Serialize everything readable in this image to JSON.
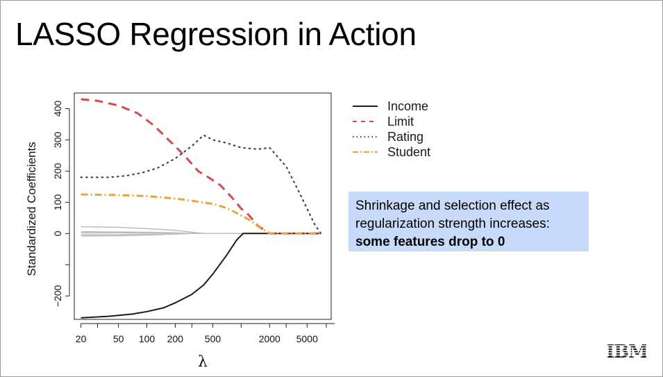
{
  "slide": {
    "title": "LASSO Regression in Action",
    "callout_line1": "Shrinkage and selection effect as",
    "callout_line2": "regularization strength increases:",
    "callout_bold": "some features drop to 0",
    "logo_text": "IBM"
  },
  "chart_data": {
    "type": "line",
    "xlabel": "λ",
    "ylabel": "Standardized Coefficients",
    "x_scale": "log",
    "xlim": [
      17,
      9000
    ],
    "ylim": [
      -275,
      450
    ],
    "x_ticks": [
      20,
      50,
      100,
      200,
      500,
      2000,
      5000
    ],
    "x_tick_labels": [
      "20",
      "50",
      "100",
      "200",
      "500",
      "2000",
      "5000"
    ],
    "y_ticks": [
      -200,
      0,
      100,
      200,
      300,
      400
    ],
    "y_tick_labels": [
      "−200",
      "0",
      "100",
      "200",
      "300",
      "400"
    ],
    "legend_position": "top-right",
    "series": [
      {
        "name": "Income",
        "style": "solid",
        "color": "#1a1a1a",
        "x": [
          20,
          40,
          70,
          100,
          150,
          200,
          300,
          400,
          500,
          700,
          900,
          1050,
          2000,
          7000
        ],
        "y": [
          -270,
          -265,
          -258,
          -250,
          -238,
          -222,
          -195,
          -165,
          -130,
          -70,
          -20,
          0,
          0,
          0
        ]
      },
      {
        "name": "Limit",
        "style": "dashed",
        "color": "#d24b4b",
        "x": [
          20,
          30,
          50,
          80,
          120,
          170,
          250,
          350,
          450,
          600,
          800,
          1000,
          1200,
          1500,
          2000,
          7000
        ],
        "y": [
          430,
          425,
          410,
          385,
          345,
          300,
          250,
          200,
          180,
          155,
          115,
          80,
          60,
          25,
          0,
          0
        ]
      },
      {
        "name": "Rating",
        "style": "dotted",
        "color": "#3a4250",
        "x": [
          20,
          40,
          60,
          90,
          130,
          200,
          300,
          400,
          500,
          700,
          1000,
          1500,
          2000,
          3000,
          4000,
          5000,
          6000,
          7000
        ],
        "y": [
          180,
          180,
          185,
          195,
          210,
          240,
          280,
          315,
          300,
          290,
          275,
          270,
          275,
          215,
          140,
          80,
          30,
          0
        ]
      },
      {
        "name": "Student",
        "style": "dashdot",
        "color": "#e8a53a",
        "x": [
          20,
          50,
          100,
          200,
          300,
          500,
          700,
          900,
          1200,
          1600,
          2000,
          7000
        ],
        "y": [
          125,
          123,
          120,
          112,
          105,
          95,
          82,
          65,
          45,
          18,
          0,
          0
        ]
      },
      {
        "name": "",
        "style": "solid",
        "color": "#bcbcbc",
        "x": [
          20,
          50,
          100,
          200,
          300,
          400,
          7000
        ],
        "y": [
          22,
          20,
          16,
          10,
          4,
          0,
          0
        ]
      },
      {
        "name": "",
        "style": "solid",
        "color": "#bcbcbc",
        "x": [
          20,
          50,
          100,
          200,
          300,
          7000
        ],
        "y": [
          6,
          5,
          4,
          2,
          0,
          0
        ]
      },
      {
        "name": "",
        "style": "solid",
        "color": "#bcbcbc",
        "x": [
          20,
          50,
          100,
          200,
          300,
          7000
        ],
        "y": [
          -4,
          -4,
          -3,
          -2,
          0,
          0
        ]
      },
      {
        "name": "",
        "style": "solid",
        "color": "#bcbcbc",
        "x": [
          20,
          50,
          100,
          150,
          250,
          7000
        ],
        "y": [
          -8,
          -7,
          -5,
          -3,
          0,
          0
        ]
      },
      {
        "name": "",
        "style": "solid",
        "color": "#bcbcbc",
        "x": [
          20,
          50,
          100,
          200,
          300,
          7000
        ],
        "y": [
          2,
          2,
          1,
          1,
          0,
          0
        ]
      }
    ]
  }
}
